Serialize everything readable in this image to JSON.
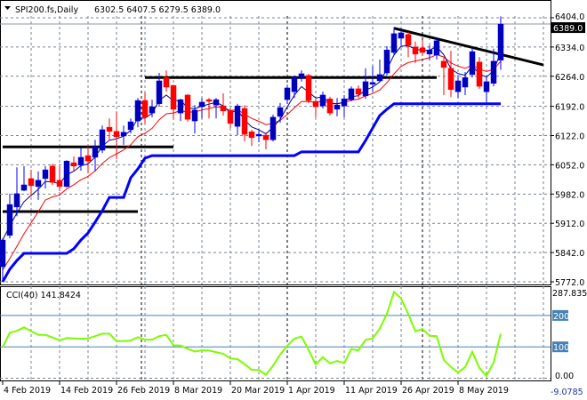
{
  "header": {
    "symbol": "SPI200.fs,Daily",
    "ohlc": "6302.5 6407.5 6279.5 6389.0",
    "collapse_icon": "triangle-down-icon"
  },
  "colors": {
    "bull": "#0000b4",
    "bear": "#ff0000",
    "fast_ma": "#000080",
    "slow_ma": "#ff0000",
    "channel": "#0000ff",
    "cci": "#7cfc00",
    "cci_levels": "#4682b4",
    "grid": "#7a8593"
  },
  "chart_data": [
    {
      "type": "candlestick",
      "title": "SPI200.fs,Daily",
      "ylim": [
        5772,
        6404
      ],
      "price_ticks": [
        "6404.0",
        "6334.0",
        "6264.0",
        "6192.0",
        "6122.0",
        "6052.0",
        "5982.0",
        "5912.0",
        "5842.0",
        "5772.0"
      ],
      "current_price_label": "6389.0",
      "grid": true,
      "x_ticks": [
        {
          "bar": 0,
          "label": "4 Feb 2019"
        },
        {
          "bar": 8,
          "label": "14 Feb 2019"
        },
        {
          "bar": 16,
          "label": "26 Feb 2019"
        },
        {
          "bar": 24,
          "label": "8 Mar 2019"
        },
        {
          "bar": 32,
          "label": "20 Mar 2019"
        },
        {
          "bar": 40,
          "label": "1 Apr 2019"
        },
        {
          "bar": 48,
          "label": "11 Apr 2019"
        },
        {
          "bar": 56,
          "label": "26 Apr 2019"
        },
        {
          "bar": 64,
          "label": "8 May 2019"
        }
      ],
      "month_separators": [
        19.5,
        40,
        59
      ],
      "candles": [
        [
          5808,
          5876,
          5772,
          5872
        ],
        [
          5883,
          5983,
          5876,
          5957
        ],
        [
          5951,
          6046,
          5929,
          5983
        ],
        [
          5991,
          6049,
          5989,
          6004
        ],
        [
          6019,
          6040,
          5976,
          6002
        ],
        [
          6000,
          6036,
          5968,
          6015
        ],
        [
          6019,
          6049,
          5995,
          6040
        ],
        [
          6049,
          6055,
          6004,
          6010
        ],
        [
          6015,
          6049,
          5989,
          6000
        ],
        [
          6000,
          6063,
          5998,
          6061
        ],
        [
          6057,
          6072,
          6038,
          6049
        ],
        [
          6051,
          6093,
          6038,
          6070
        ],
        [
          6074,
          6097,
          6032,
          6061
        ],
        [
          6070,
          6112,
          6036,
          6095
        ],
        [
          6087,
          6146,
          6080,
          6136
        ],
        [
          6142,
          6163,
          6110,
          6132
        ],
        [
          6132,
          6180,
          6066,
          6119
        ],
        [
          6121,
          6146,
          6100,
          6130
        ],
        [
          6136,
          6163,
          6127,
          6155
        ],
        [
          6157,
          6212,
          6142,
          6206
        ],
        [
          6206,
          6225,
          6151,
          6166
        ],
        [
          6176,
          6208,
          6166,
          6191
        ],
        [
          6198,
          6272,
          6191,
          6253
        ],
        [
          6261,
          6278,
          6227,
          6238
        ],
        [
          6242,
          6244,
          6161,
          6185
        ],
        [
          6176,
          6210,
          6157,
          6208
        ],
        [
          6219,
          6221,
          6155,
          6161
        ],
        [
          6157,
          6195,
          6127,
          6183
        ],
        [
          6191,
          6212,
          6163,
          6202
        ],
        [
          6208,
          6212,
          6163,
          6204
        ],
        [
          6195,
          6212,
          6163,
          6208
        ],
        [
          6193,
          6223,
          6170,
          6181
        ],
        [
          6181,
          6187,
          6140,
          6151
        ],
        [
          6144,
          6198,
          6123,
          6193
        ],
        [
          6187,
          6195,
          6108,
          6125
        ],
        [
          6131,
          6136,
          6097,
          6117
        ],
        [
          6121,
          6134,
          6106,
          6125
        ],
        [
          6123,
          6129,
          6089,
          6112
        ],
        [
          6112,
          6172,
          6108,
          6166
        ],
        [
          6168,
          6200,
          6153,
          6189
        ],
        [
          6208,
          6244,
          6200,
          6236
        ],
        [
          6227,
          6266,
          6212,
          6261
        ],
        [
          6261,
          6278,
          6251,
          6270
        ],
        [
          6266,
          6270,
          6200,
          6206
        ],
        [
          6204,
          6210,
          6166,
          6191
        ],
        [
          6193,
          6227,
          6187,
          6219
        ],
        [
          6210,
          6215,
          6170,
          6176
        ],
        [
          6185,
          6212,
          6168,
          6195
        ],
        [
          6193,
          6219,
          6166,
          6210
        ],
        [
          6208,
          6240,
          6204,
          6234
        ],
        [
          6234,
          6242,
          6212,
          6221
        ],
        [
          6217,
          6283,
          6210,
          6251
        ],
        [
          6245,
          6289,
          6227,
          6249
        ],
        [
          6253,
          6304,
          6251,
          6268
        ],
        [
          6272,
          6336,
          6266,
          6327
        ],
        [
          6321,
          6381,
          6315,
          6366
        ],
        [
          6355,
          6375,
          6338,
          6368
        ],
        [
          6364,
          6370,
          6310,
          6338
        ],
        [
          6334,
          6347,
          6296,
          6317
        ],
        [
          6332,
          6351,
          6313,
          6321
        ],
        [
          6317,
          6338,
          6304,
          6327
        ],
        [
          6315,
          6355,
          6304,
          6349
        ],
        [
          6300,
          6308,
          6219,
          6285
        ],
        [
          6283,
          6325,
          6214,
          6232
        ],
        [
          6227,
          6266,
          6212,
          6253
        ],
        [
          6238,
          6274,
          6219,
          6261
        ],
        [
          6268,
          6334,
          6261,
          6323
        ],
        [
          6298,
          6310,
          6234,
          6240
        ],
        [
          6227,
          6263,
          6202,
          6251
        ],
        [
          6247,
          6330,
          6240,
          6300
        ],
        [
          6302.5,
          6407.5,
          6279.5,
          6389.0
        ]
      ],
      "fast_ma_period": 4,
      "slow_ma_period": 10,
      "channel_lower": [
        5772,
        5802,
        5823,
        5840,
        5840,
        5840,
        5840,
        5840,
        5840,
        5840,
        5851,
        5872,
        5889,
        5915,
        5942,
        5974,
        5974,
        5974,
        6021,
        6042,
        6068,
        6074,
        6074,
        6074,
        6074,
        6074,
        6074,
        6074,
        6074,
        6074,
        6074,
        6074,
        6074,
        6074,
        6074,
        6074,
        6074,
        6074,
        6074,
        6074,
        6074,
        6074,
        6083,
        6083,
        6083,
        6083,
        6083,
        6083,
        6083,
        6083,
        6083,
        6110,
        6140,
        6170,
        6185,
        6198,
        6198,
        6198,
        6198,
        6198,
        6198,
        6198,
        6198,
        6198,
        6198,
        6198,
        6198,
        6198,
        6198,
        6198,
        6198
      ],
      "horizontal_lines": [
        {
          "price": 6095,
          "from_bar": 0,
          "to_bar": 24
        },
        {
          "price": 5940,
          "from_bar": 0,
          "to_bar": 19
        },
        {
          "price": 6261,
          "from_bar": 20,
          "to_bar": 61
        }
      ],
      "trend_line": {
        "from": [
          55,
          6379
        ],
        "to": [
          76,
          6291
        ]
      }
    },
    {
      "type": "line",
      "title": "CCI(40) 141.8424",
      "ylim": [
        -9.0785,
        287.8357
      ],
      "axis_labels": {
        "max": "287.8357",
        "min": "-9.0785",
        "zero": "0.00"
      },
      "levels": [
        {
          "value": 200,
          "label": "200"
        },
        {
          "value": 100,
          "label": "100"
        }
      ],
      "values": [
        99,
        145,
        151,
        162,
        150,
        138,
        138,
        130,
        121,
        128,
        127,
        126,
        127,
        134,
        142,
        142,
        118,
        118,
        120,
        131,
        123,
        123,
        134,
        138,
        105,
        104,
        94,
        85,
        89,
        88,
        83,
        78,
        63,
        61,
        45,
        27,
        26,
        11,
        40,
        75,
        103,
        126,
        133,
        90,
        44,
        67,
        47,
        55,
        48,
        93,
        89,
        122,
        127,
        158,
        205,
        275,
        254,
        205,
        150,
        157,
        135,
        134,
        58,
        36,
        18,
        35,
        84,
        33,
        7,
        50,
        141.8424
      ]
    }
  ]
}
